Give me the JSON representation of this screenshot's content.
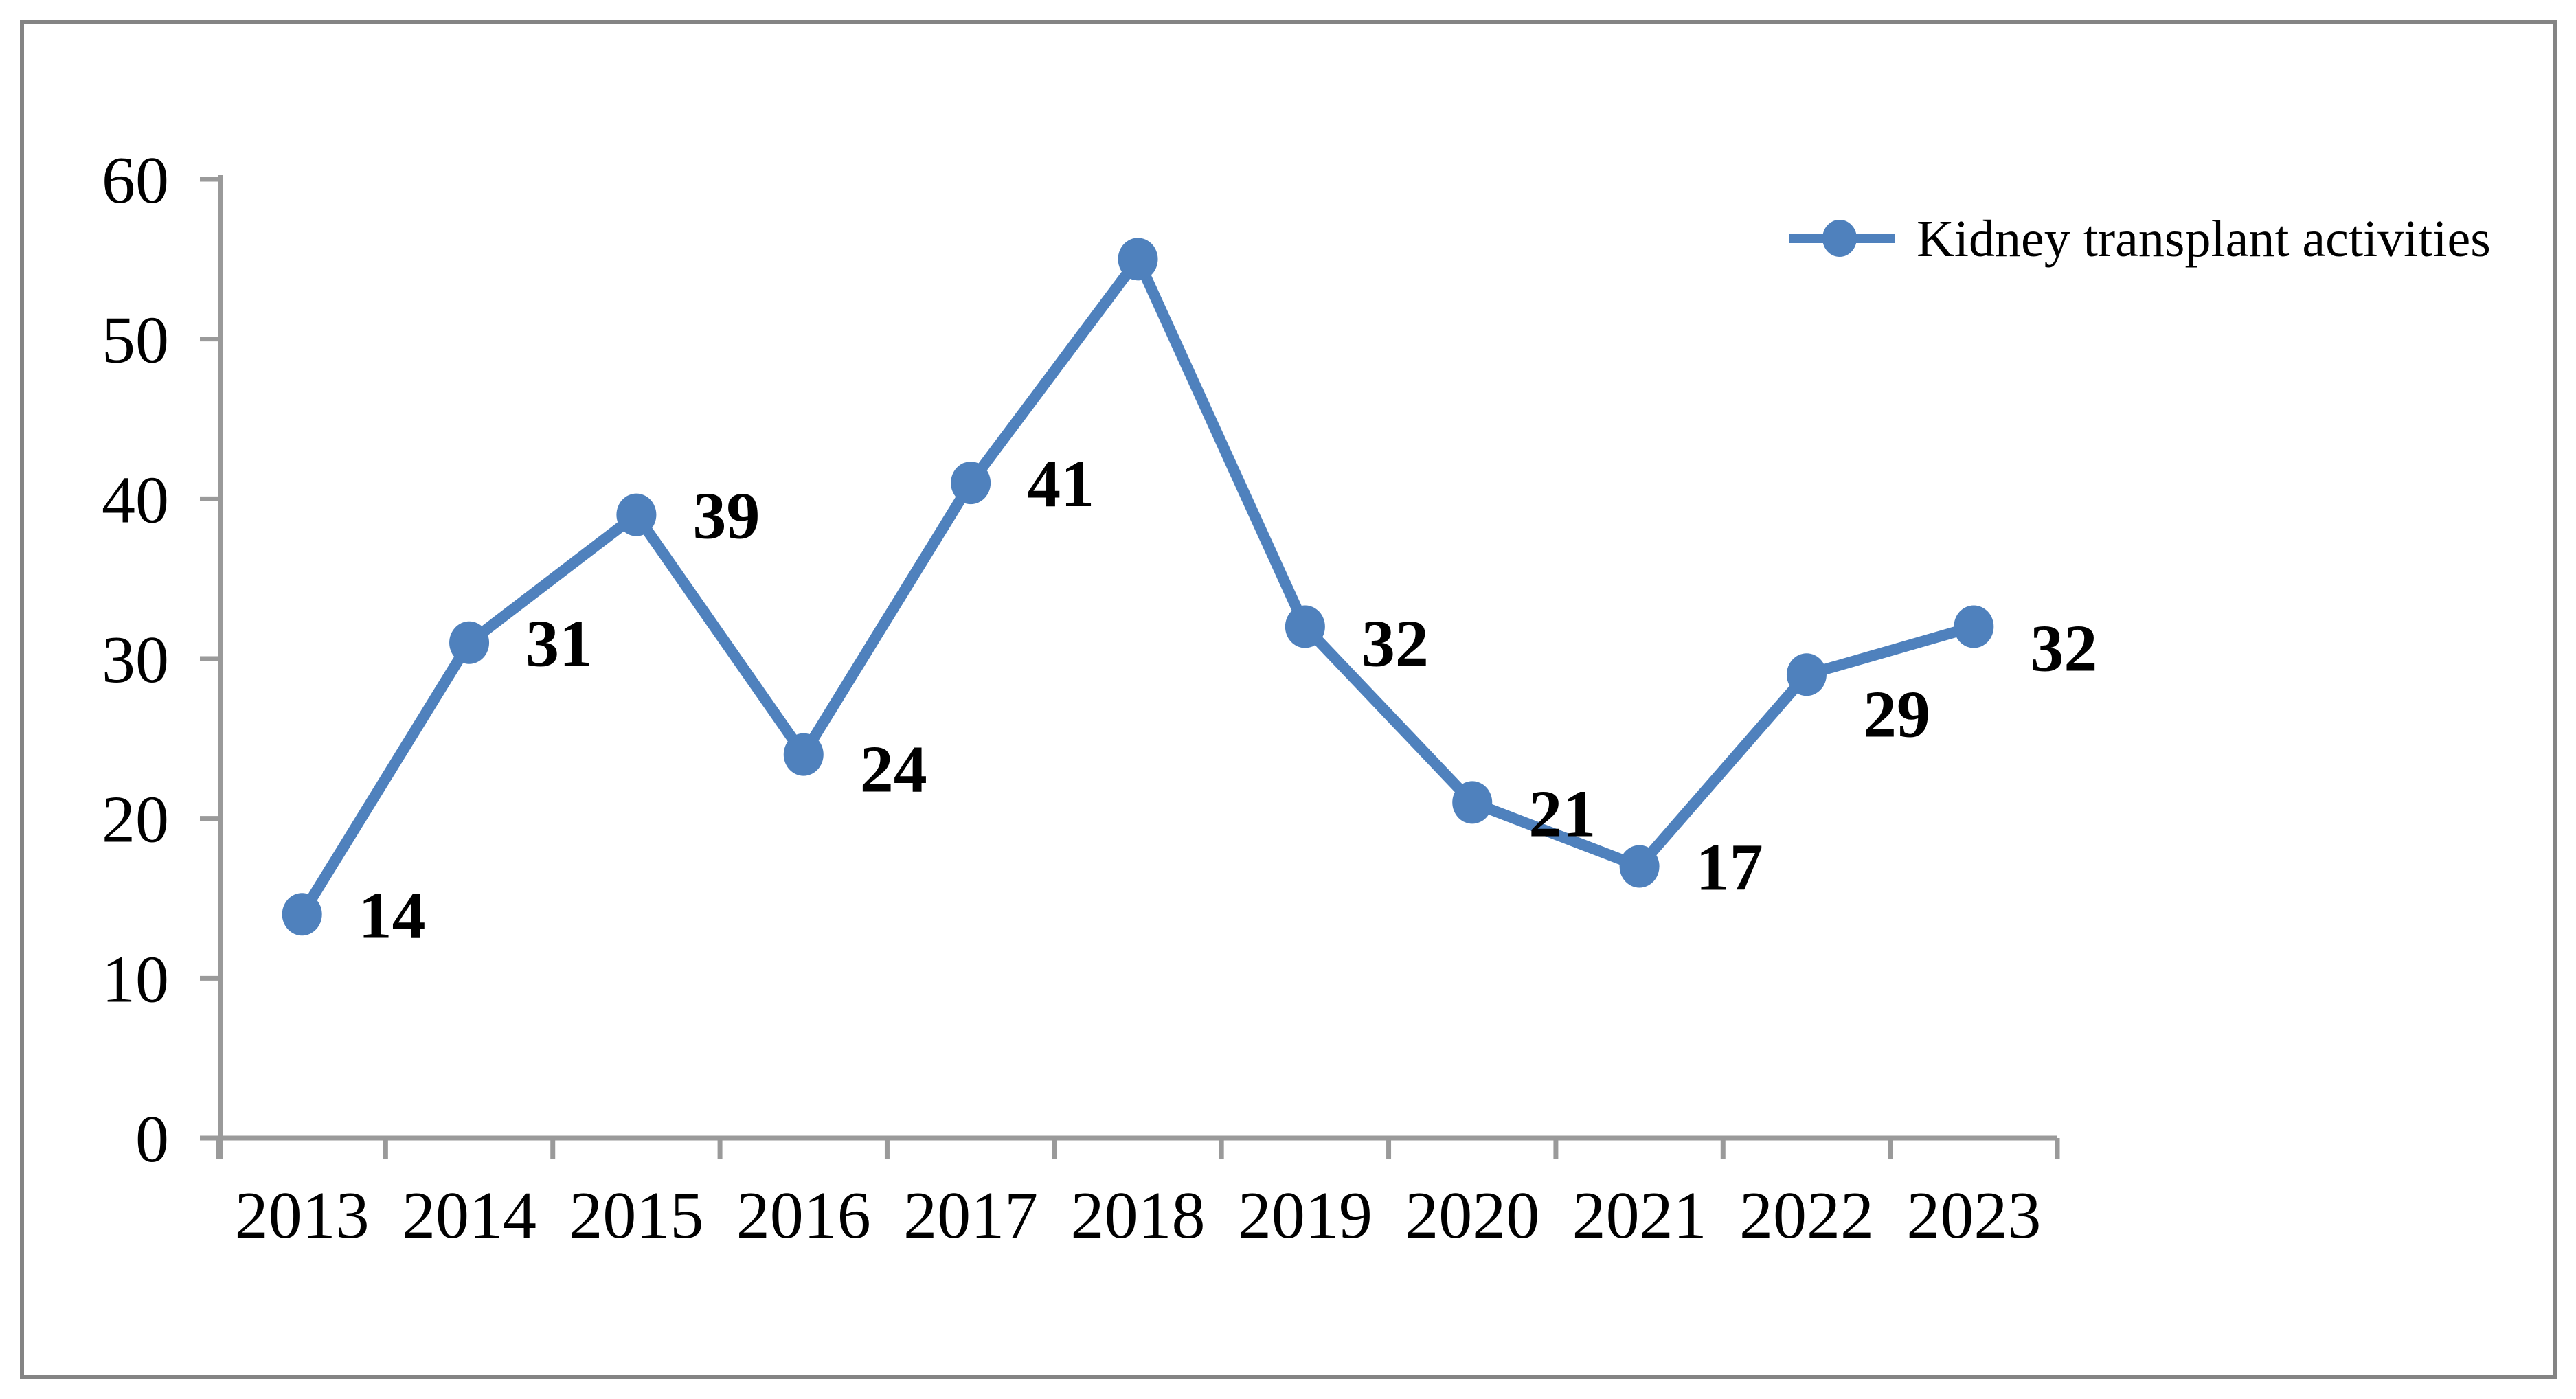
{
  "figure": {
    "background": "#ffffff",
    "border_color": "#848484"
  },
  "legend": {
    "label": "Kidney transplant activities"
  },
  "chart_data": {
    "type": "line",
    "title": "",
    "xlabel": "",
    "ylabel": "",
    "categories": [
      "2013",
      "2014",
      "2015",
      "2016",
      "2017",
      "2018",
      "2019",
      "2020",
      "2021",
      "2022",
      "2023"
    ],
    "series": [
      {
        "name": "Kidney transplant activities",
        "color": "#4F81BD",
        "marker": "circle",
        "values": [
          14,
          31,
          39,
          24,
          41,
          55,
          32,
          21,
          17,
          29,
          32
        ]
      }
    ],
    "point_labels": [
      "14",
      "31",
      "39",
      "24",
      "41",
      "",
      "32",
      "21",
      "17",
      "29",
      "32"
    ],
    "y_ticks": [
      0,
      10,
      20,
      30,
      40,
      50,
      60
    ],
    "ylim": [
      0,
      60
    ],
    "grid": "off",
    "legend_position": "top-right",
    "axis_color": "#9A9A9A",
    "text_color": "#000000"
  }
}
